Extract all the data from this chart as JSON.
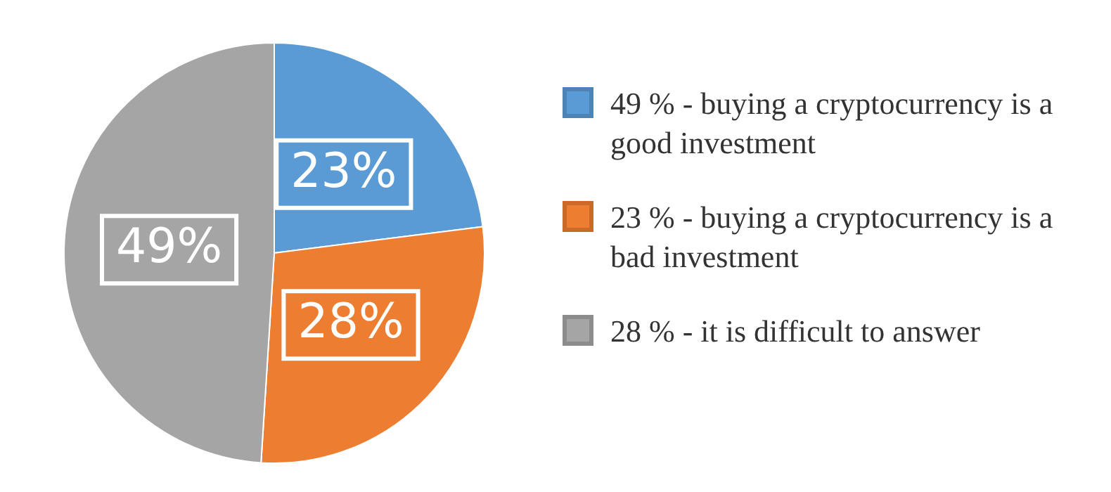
{
  "chart_data": {
    "type": "pie",
    "categories": [
      "49 % - buying a cryptocurrency is a good investment",
      "23 % - buying a cryptocurrency is a bad investment",
      "28 % - it is difficult to answer"
    ],
    "values": [
      23,
      28,
      49
    ],
    "value_labels": [
      "23%",
      "28%",
      "49%"
    ],
    "colors": [
      "#5b9bd5",
      "#ed7d31",
      "#a5a5a5"
    ],
    "legend": "right"
  }
}
